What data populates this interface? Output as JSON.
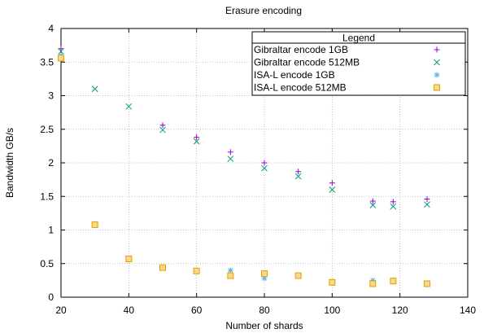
{
  "chart_data": {
    "type": "scatter",
    "title": "Erasure encoding",
    "xlabel": "Number of shards",
    "ylabel": "Bandwidth GB/s",
    "xlim": [
      20,
      140
    ],
    "ylim": [
      0,
      4
    ],
    "xticks": [
      20,
      40,
      60,
      80,
      100,
      120,
      140
    ],
    "yticks": [
      0,
      0.5,
      1,
      1.5,
      2,
      2.5,
      3,
      3.5,
      4
    ],
    "xtick_labels": [
      "20",
      "40",
      "60",
      "80",
      "100",
      "120",
      "140"
    ],
    "ytick_labels": [
      "0",
      "0.5",
      "1",
      "1.5",
      "2",
      "2.5",
      "3",
      "3.5",
      "4"
    ],
    "grid": true,
    "legend": {
      "title": "Legend",
      "position": "top-right"
    },
    "series": [
      {
        "name": "Gibraltar encode 1GB",
        "marker": "plus",
        "color": "#9400d3",
        "points": [
          [
            20,
            3.7
          ],
          [
            50,
            2.56
          ],
          [
            60,
            2.38
          ],
          [
            70,
            2.16
          ],
          [
            80,
            2.0
          ],
          [
            90,
            1.87
          ],
          [
            100,
            1.7
          ],
          [
            112,
            1.43
          ],
          [
            118,
            1.42
          ],
          [
            128,
            1.46
          ]
        ]
      },
      {
        "name": "Gibraltar encode 512MB",
        "marker": "x",
        "color": "#009e73",
        "points": [
          [
            20,
            3.66
          ],
          [
            30,
            3.1
          ],
          [
            40,
            2.84
          ],
          [
            50,
            2.49
          ],
          [
            60,
            2.32
          ],
          [
            70,
            2.06
          ],
          [
            80,
            1.92
          ],
          [
            90,
            1.8
          ],
          [
            100,
            1.6
          ],
          [
            112,
            1.37
          ],
          [
            118,
            1.35
          ],
          [
            128,
            1.38
          ]
        ]
      },
      {
        "name": "ISA-L encode 1GB",
        "marker": "star",
        "color": "#56b4e9",
        "points": [
          [
            20,
            3.6
          ],
          [
            40,
            0.58
          ],
          [
            50,
            0.45
          ],
          [
            60,
            0.4
          ],
          [
            70,
            0.4
          ],
          [
            80,
            0.28
          ],
          [
            90,
            0.32
          ],
          [
            100,
            0.23
          ],
          [
            112,
            0.25
          ],
          [
            118,
            0.25
          ],
          [
            128,
            0.2
          ]
        ]
      },
      {
        "name": "ISA-L encode 512MB",
        "marker": "square",
        "color": "#e69f00",
        "points": [
          [
            20,
            3.56
          ],
          [
            30,
            1.08
          ],
          [
            40,
            0.57
          ],
          [
            50,
            0.44
          ],
          [
            60,
            0.39
          ],
          [
            70,
            0.32
          ],
          [
            80,
            0.35
          ],
          [
            90,
            0.32
          ],
          [
            100,
            0.22
          ],
          [
            112,
            0.2
          ],
          [
            118,
            0.24
          ],
          [
            128,
            0.2
          ]
        ]
      }
    ]
  }
}
